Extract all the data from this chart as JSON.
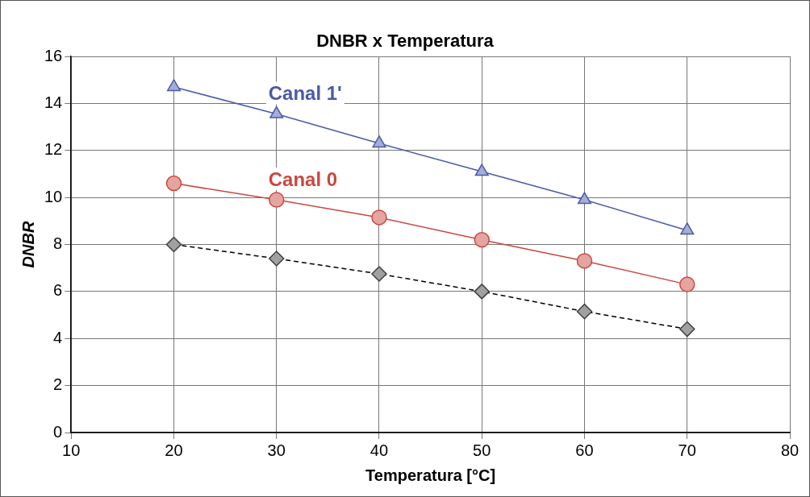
{
  "chart_data": {
    "type": "line",
    "title": "DNBR x Temperatura",
    "xlabel": "Temperatura [°C]",
    "ylabel": "DNBR",
    "x": [
      20,
      30,
      40,
      50,
      60,
      70
    ],
    "series": [
      {
        "name": "Canal 1'",
        "color": "#4a5aa8",
        "values": [
          14.7,
          13.55,
          12.3,
          11.1,
          9.9,
          8.6
        ],
        "marker": "triangle",
        "line_style": "solid"
      },
      {
        "name": "Canal 0",
        "color": "#c9483f",
        "values": [
          10.6,
          9.9,
          9.15,
          8.2,
          7.3,
          6.3
        ],
        "marker": "circle",
        "line_style": "solid"
      },
      {
        "color": "#000000",
        "values": [
          8.0,
          7.4,
          6.75,
          6.0,
          5.15,
          4.4
        ],
        "marker": "diamond",
        "line_style": "dashed"
      }
    ],
    "xlim": [
      10,
      80
    ],
    "xticks": [
      10,
      20,
      30,
      40,
      50,
      60,
      70,
      80
    ],
    "ylim": [
      0,
      16
    ],
    "yticks": [
      0,
      2,
      4,
      6,
      8,
      10,
      12,
      14,
      16
    ],
    "grid": true,
    "legend": false
  }
}
